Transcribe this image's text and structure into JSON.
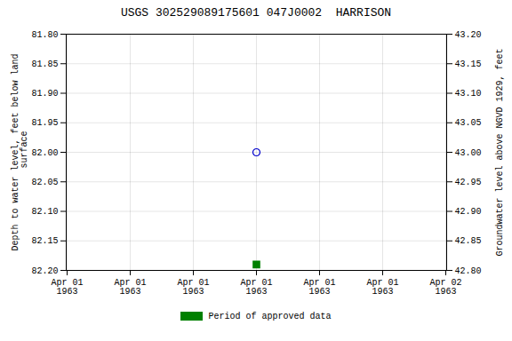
{
  "chart_data": {
    "type": "scatter",
    "title": "USGS 302529089175601 047J0002  HARRISON",
    "y_label": "Depth to water level, feet below land\n surface",
    "y2_label": "Groundwater level above NGVD 1929, feet",
    "categories": [
      "Apr 01\n1963",
      "Apr 01\n1963",
      "Apr 01\n1963",
      "Apr 01\n1963",
      "Apr 01\n1963",
      "Apr 01\n1963",
      "Apr 02\n1963"
    ],
    "series": [
      {
        "marker": "open_circle",
        "color": "#0000cc",
        "values": [
          null,
          null,
          null,
          82.0,
          null,
          null,
          null
        ]
      },
      {
        "name": "Period of approved data",
        "marker": "square",
        "color": "#008000",
        "values": [
          null,
          null,
          null,
          82.19,
          null,
          null,
          null
        ]
      }
    ],
    "ylim": [
      82.2,
      81.8
    ],
    "yticks": [
      {
        "value": 81.8,
        "label": "81.80"
      },
      {
        "value": 81.85,
        "label": "81.85"
      },
      {
        "value": 81.9,
        "label": "81.90"
      },
      {
        "value": 81.95,
        "label": "81.95"
      },
      {
        "value": 82.0,
        "label": "82.00"
      },
      {
        "value": 82.05,
        "label": "82.05"
      },
      {
        "value": 82.1,
        "label": "82.10"
      },
      {
        "value": 82.15,
        "label": "82.15"
      },
      {
        "value": 82.2,
        "label": "82.20"
      }
    ],
    "y2lim": [
      42.8,
      43.2
    ],
    "y2ticks": [
      {
        "value": 42.8,
        "label": "42.80"
      },
      {
        "value": 42.85,
        "label": "42.85"
      },
      {
        "value": 42.9,
        "label": "42.90"
      },
      {
        "value": 42.95,
        "label": "42.95"
      },
      {
        "value": 43.0,
        "label": "43.00"
      },
      {
        "value": 43.05,
        "label": "43.05"
      },
      {
        "value": 43.1,
        "label": "43.10"
      },
      {
        "value": 43.15,
        "label": "43.15"
      },
      {
        "value": 43.2,
        "label": "43.20"
      }
    ],
    "grid": true,
    "legend": "bottom"
  }
}
